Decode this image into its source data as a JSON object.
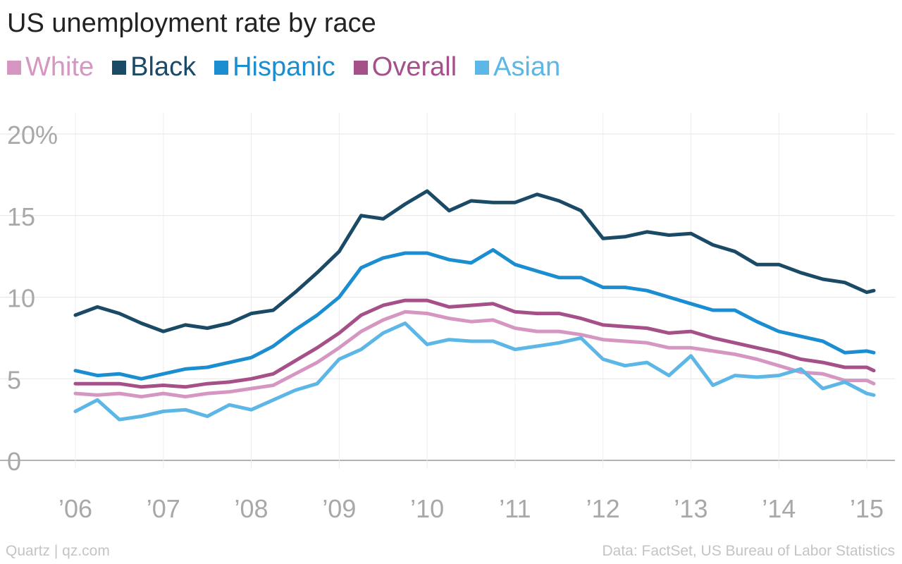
{
  "chart_data": {
    "type": "line",
    "title": "US unemployment rate by race",
    "y_tick_labels": [
      "0",
      "5",
      "10",
      "15",
      "20%"
    ],
    "y_ticks": [
      0,
      5,
      10,
      15,
      20
    ],
    "ylim": [
      0,
      20
    ],
    "x_tick_labels": [
      "’06",
      "’07",
      "’08",
      "’09",
      "’10",
      "’11",
      "’12",
      "’13",
      "’14",
      "’15"
    ],
    "x_ticks": [
      2006,
      2007,
      2008,
      2009,
      2010,
      2011,
      2012,
      2013,
      2014,
      2015
    ],
    "xlim": [
      2006,
      2015.08
    ],
    "grid": true,
    "legend_position": "top-left",
    "series": [
      {
        "name": "White",
        "color": "#d597c1",
        "x": [
          2006.0,
          2006.25,
          2006.5,
          2006.75,
          2007.0,
          2007.25,
          2007.5,
          2007.75,
          2008.0,
          2008.25,
          2008.5,
          2008.75,
          2009.0,
          2009.25,
          2009.5,
          2009.75,
          2010.0,
          2010.25,
          2010.5,
          2010.75,
          2011.0,
          2011.25,
          2011.5,
          2011.75,
          2012.0,
          2012.25,
          2012.5,
          2012.75,
          2013.0,
          2013.25,
          2013.5,
          2013.75,
          2014.0,
          2014.25,
          2014.5,
          2014.75,
          2015.0,
          2015.08
        ],
        "values": [
          4.1,
          4.0,
          4.1,
          3.9,
          4.1,
          3.9,
          4.1,
          4.2,
          4.4,
          4.6,
          5.3,
          6.0,
          6.9,
          7.9,
          8.6,
          9.1,
          9.0,
          8.7,
          8.5,
          8.6,
          8.1,
          7.9,
          7.9,
          7.7,
          7.4,
          7.3,
          7.2,
          6.9,
          6.9,
          6.7,
          6.5,
          6.2,
          5.8,
          5.4,
          5.3,
          4.9,
          4.9,
          4.7
        ]
      },
      {
        "name": "Black",
        "color": "#1a4a66",
        "x": [
          2006.0,
          2006.25,
          2006.5,
          2006.75,
          2007.0,
          2007.25,
          2007.5,
          2007.75,
          2008.0,
          2008.25,
          2008.5,
          2008.75,
          2009.0,
          2009.25,
          2009.5,
          2009.75,
          2010.0,
          2010.25,
          2010.5,
          2010.75,
          2011.0,
          2011.25,
          2011.5,
          2011.75,
          2012.0,
          2012.25,
          2012.5,
          2012.75,
          2013.0,
          2013.25,
          2013.5,
          2013.75,
          2014.0,
          2014.25,
          2014.5,
          2014.75,
          2015.0,
          2015.08
        ],
        "values": [
          8.9,
          9.4,
          9.0,
          8.4,
          7.9,
          8.3,
          8.1,
          8.4,
          9.0,
          9.2,
          10.3,
          11.5,
          12.8,
          15.0,
          14.8,
          15.7,
          16.5,
          15.3,
          15.9,
          15.8,
          15.8,
          16.3,
          15.9,
          15.3,
          13.6,
          13.7,
          14.0,
          13.8,
          13.9,
          13.2,
          12.8,
          12.0,
          12.0,
          11.5,
          11.1,
          10.9,
          10.3,
          10.4
        ]
      },
      {
        "name": "Hispanic",
        "color": "#1a8ed1",
        "x": [
          2006.0,
          2006.25,
          2006.5,
          2006.75,
          2007.0,
          2007.25,
          2007.5,
          2007.75,
          2008.0,
          2008.25,
          2008.5,
          2008.75,
          2009.0,
          2009.25,
          2009.5,
          2009.75,
          2010.0,
          2010.25,
          2010.5,
          2010.75,
          2011.0,
          2011.25,
          2011.5,
          2011.75,
          2012.0,
          2012.25,
          2012.5,
          2012.75,
          2013.0,
          2013.25,
          2013.5,
          2013.75,
          2014.0,
          2014.25,
          2014.5,
          2014.75,
          2015.0,
          2015.08
        ],
        "values": [
          5.5,
          5.2,
          5.3,
          5.0,
          5.3,
          5.6,
          5.7,
          6.0,
          6.3,
          7.0,
          8.0,
          8.9,
          10.0,
          11.8,
          12.4,
          12.7,
          12.7,
          12.3,
          12.1,
          12.9,
          12.0,
          11.6,
          11.2,
          11.2,
          10.6,
          10.6,
          10.4,
          10.0,
          9.6,
          9.2,
          9.2,
          8.5,
          7.9,
          7.6,
          7.3,
          6.6,
          6.7,
          6.6
        ]
      },
      {
        "name": "Overall",
        "color": "#a6508a",
        "x": [
          2006.0,
          2006.25,
          2006.5,
          2006.75,
          2007.0,
          2007.25,
          2007.5,
          2007.75,
          2008.0,
          2008.25,
          2008.5,
          2008.75,
          2009.0,
          2009.25,
          2009.5,
          2009.75,
          2010.0,
          2010.25,
          2010.5,
          2010.75,
          2011.0,
          2011.25,
          2011.5,
          2011.75,
          2012.0,
          2012.25,
          2012.5,
          2012.75,
          2013.0,
          2013.25,
          2013.5,
          2013.75,
          2014.0,
          2014.25,
          2014.5,
          2014.75,
          2015.0,
          2015.08
        ],
        "values": [
          4.7,
          4.7,
          4.7,
          4.5,
          4.6,
          4.5,
          4.7,
          4.8,
          5.0,
          5.3,
          6.1,
          6.9,
          7.8,
          8.9,
          9.5,
          9.8,
          9.8,
          9.4,
          9.5,
          9.6,
          9.1,
          9.0,
          9.0,
          8.7,
          8.3,
          8.2,
          8.1,
          7.8,
          7.9,
          7.5,
          7.2,
          6.9,
          6.6,
          6.2,
          6.0,
          5.7,
          5.7,
          5.5
        ]
      },
      {
        "name": "Asian",
        "color": "#5cb6e6",
        "x": [
          2006.0,
          2006.25,
          2006.5,
          2006.75,
          2007.0,
          2007.25,
          2007.5,
          2007.75,
          2008.0,
          2008.25,
          2008.5,
          2008.75,
          2009.0,
          2009.25,
          2009.5,
          2009.75,
          2010.0,
          2010.25,
          2010.5,
          2010.75,
          2011.0,
          2011.25,
          2011.5,
          2011.75,
          2012.0,
          2012.25,
          2012.5,
          2012.75,
          2013.0,
          2013.25,
          2013.5,
          2013.75,
          2014.0,
          2014.25,
          2014.5,
          2014.75,
          2015.0,
          2015.08
        ],
        "values": [
          3.0,
          3.7,
          2.5,
          2.7,
          3.0,
          3.1,
          2.7,
          3.4,
          3.1,
          3.7,
          4.3,
          4.7,
          6.2,
          6.8,
          7.8,
          8.4,
          7.1,
          7.4,
          7.3,
          7.3,
          6.8,
          7.0,
          7.2,
          7.5,
          6.2,
          5.8,
          6.0,
          5.2,
          6.4,
          4.6,
          5.2,
          5.1,
          5.2,
          5.6,
          4.4,
          4.8,
          4.1,
          4.0
        ]
      }
    ]
  },
  "footer": {
    "source_left": "Quartz | qz.com",
    "source_right": "Data: FactSet, US Bureau of Labor Statistics"
  }
}
